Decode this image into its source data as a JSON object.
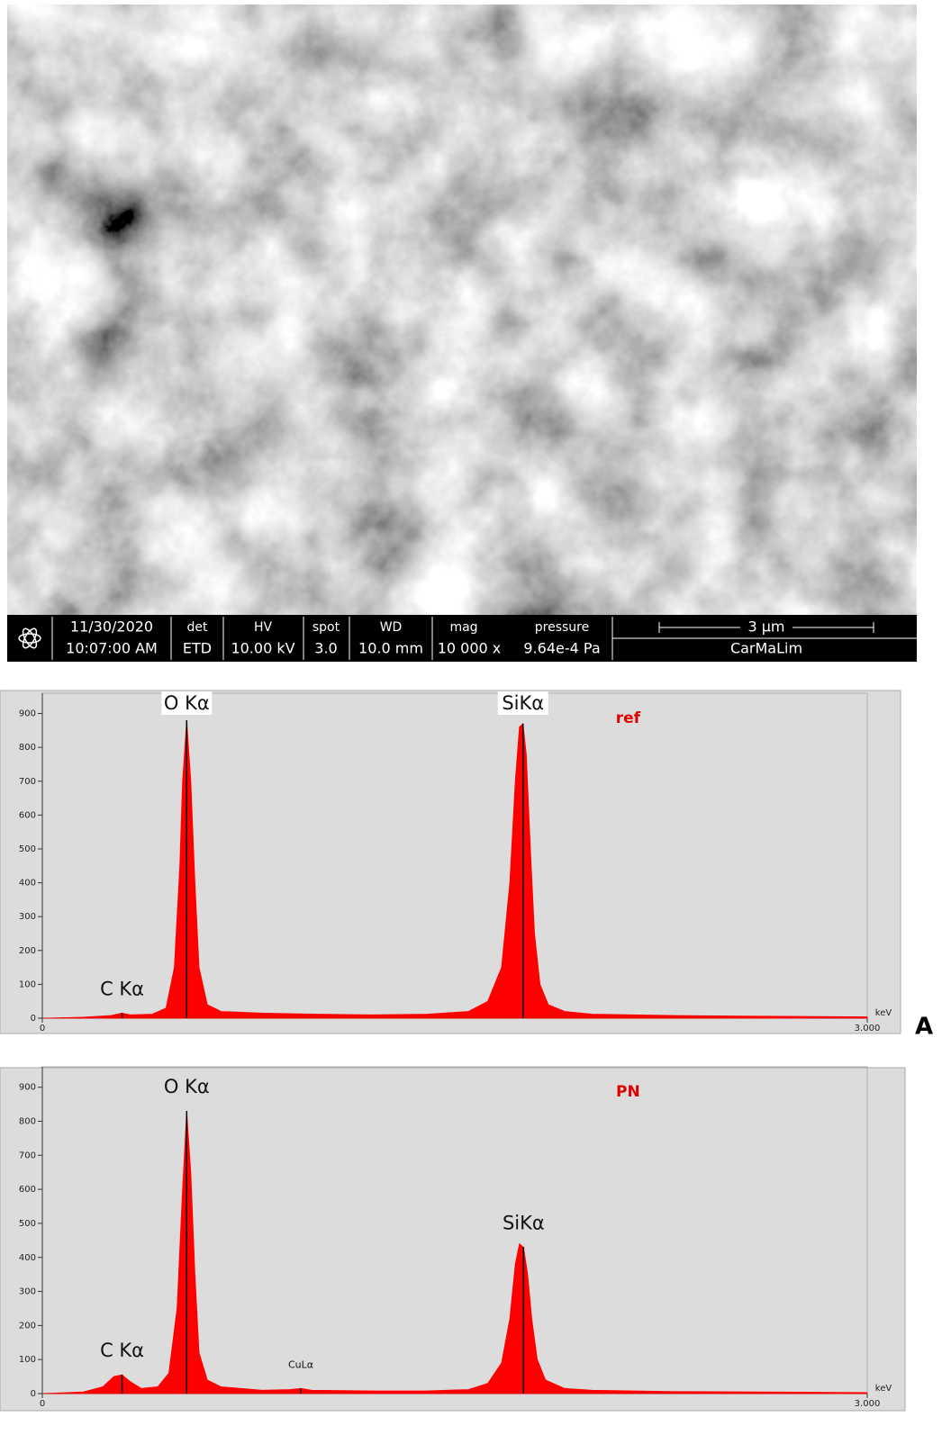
{
  "sem_bar": {
    "date": "11/30/2020",
    "time": "10:07:00 AM",
    "det_label": "det",
    "det": "ETD",
    "hv_label": "HV",
    "hv": "10.00 kV",
    "spot_label": "spot",
    "spot": "3.0",
    "wd_label": "WD",
    "wd": "10.0 mm",
    "mag_label": "mag",
    "mag": "10 000 x",
    "pressure_label": "pressure",
    "pressure": "9.64e-4 Pa",
    "scale": "3 μm",
    "operator": "CarMaLim"
  },
  "chart_data": [
    {
      "type": "area",
      "panel_label": "A",
      "x_label": "keV",
      "xlim": [
        0,
        3
      ],
      "xticks": [
        0,
        {
          "value": 3,
          "label": "3.000"
        }
      ],
      "ylim": [
        0,
        960
      ],
      "yticks": [
        0,
        100,
        200,
        300,
        400,
        500,
        600,
        700,
        800,
        900
      ],
      "x": [
        0,
        0.15,
        0.25,
        0.29,
        0.32,
        0.4,
        0.45,
        0.48,
        0.5,
        0.51,
        0.525,
        0.54,
        0.555,
        0.57,
        0.6,
        0.65,
        0.8,
        1.0,
        1.2,
        1.4,
        1.55,
        1.62,
        1.67,
        1.7,
        1.72,
        1.735,
        1.748,
        1.76,
        1.775,
        1.79,
        1.81,
        1.84,
        1.9,
        2.0,
        2.3,
        2.6,
        3.0
      ],
      "series": [
        {
          "name": "ref",
          "color": "#ff0000",
          "values": [
            0,
            3,
            8,
            15,
            10,
            12,
            30,
            150,
            450,
            700,
            880,
            700,
            400,
            150,
            40,
            20,
            15,
            12,
            10,
            12,
            20,
            50,
            150,
            400,
            700,
            860,
            870,
            780,
            500,
            250,
            100,
            40,
            20,
            12,
            8,
            6,
            4
          ]
        }
      ],
      "peaks": [
        {
          "label": "C Kα",
          "x": 0.29
        },
        {
          "label": "O Kα",
          "x": 0.525
        },
        {
          "label": "SiKα",
          "x": 1.748
        }
      ]
    },
    {
      "type": "area",
      "x_label": "keV",
      "xlim": [
        0,
        3
      ],
      "xticks": [
        0,
        {
          "value": 3,
          "label": "3.000"
        }
      ],
      "ylim": [
        0,
        960
      ],
      "yticks": [
        0,
        100,
        200,
        300,
        400,
        500,
        600,
        700,
        800,
        900
      ],
      "x": [
        0,
        0.15,
        0.22,
        0.26,
        0.29,
        0.32,
        0.36,
        0.42,
        0.46,
        0.49,
        0.51,
        0.525,
        0.54,
        0.555,
        0.57,
        0.6,
        0.65,
        0.8,
        0.9,
        0.94,
        0.98,
        1.2,
        1.4,
        1.55,
        1.62,
        1.67,
        1.7,
        1.72,
        1.735,
        1.75,
        1.765,
        1.78,
        1.8,
        1.83,
        1.9,
        2.0,
        2.3,
        2.6,
        3.0
      ],
      "series": [
        {
          "name": "PN",
          "color": "#ff0000",
          "values": [
            0,
            5,
            20,
            50,
            55,
            35,
            15,
            20,
            60,
            250,
            600,
            830,
            650,
            350,
            120,
            40,
            20,
            10,
            12,
            15,
            10,
            8,
            8,
            12,
            30,
            90,
            220,
            380,
            440,
            430,
            350,
            220,
            100,
            40,
            15,
            10,
            6,
            5,
            3
          ]
        }
      ],
      "peaks": [
        {
          "label": "C Kα",
          "x": 0.29
        },
        {
          "label": "O Kα",
          "x": 0.525
        },
        {
          "label": "CuLα",
          "x": 0.94
        },
        {
          "label": "SiKα",
          "x": 1.75
        }
      ]
    }
  ]
}
